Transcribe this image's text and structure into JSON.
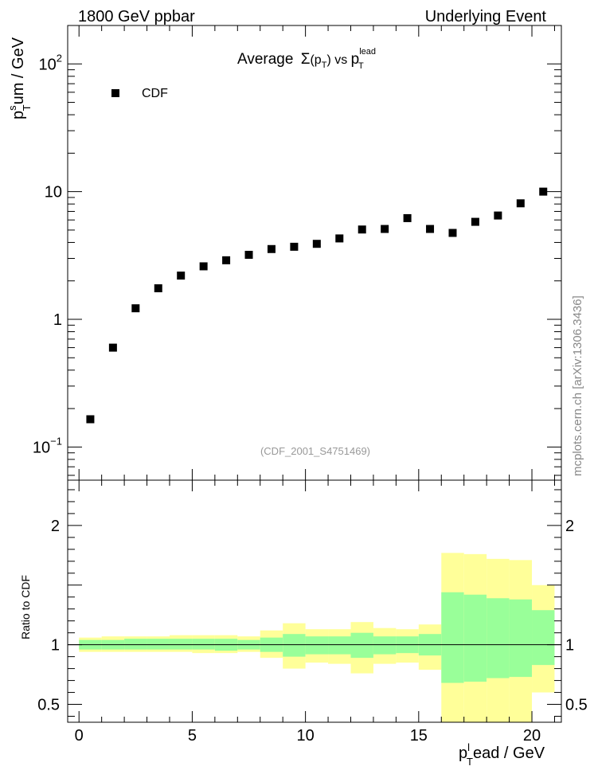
{
  "header": {
    "left": "1800 GeV ppbar",
    "right": "Underlying Event"
  },
  "plot_title": {
    "main": "Average",
    "sigma": "Σ",
    "paren_open": "(p",
    "paren_sub": "T",
    "paren_close": ")",
    "vs": " vs ",
    "p": "p",
    "p_sup": "lead",
    "p_sub": "T"
  },
  "side_label": "mcplots.cern.ch [arXiv:1306.3436]",
  "analysis_id": "(CDF_2001_S4751469)",
  "y_label_top": {
    "p": "p",
    "sup": "s",
    "sub": "T",
    "rest": "um / GeV"
  },
  "y_label_bottom": "Ratio to CDF",
  "x_label": {
    "p": "p",
    "sup": "l",
    "sub": "T",
    "rest": "ead / GeV"
  },
  "legend": {
    "entry": "CDF"
  },
  "colors": {
    "data_marker": "#000000",
    "band_outer": "#ffff99",
    "band_inner": "#99ff99",
    "analysis_id_text": "#999999",
    "side_label_text": "#888888"
  },
  "chart_data": [
    {
      "type": "scatter",
      "yscale": "log",
      "xlim": [
        -0.5,
        21.3
      ],
      "ylim": [
        0.055,
        200
      ],
      "series": [
        {
          "name": "CDF",
          "x": [
            0.5,
            1.5,
            2.5,
            3.5,
            4.5,
            5.5,
            6.5,
            7.5,
            8.5,
            9.5,
            10.5,
            11.5,
            12.5,
            13.5,
            14.5,
            15.5,
            16.5,
            17.5,
            18.5,
            19.5,
            20.5
          ],
          "y": [
            0.165,
            0.6,
            1.22,
            1.75,
            2.2,
            2.6,
            2.9,
            3.2,
            3.55,
            3.7,
            3.9,
            4.3,
            5.05,
            5.1,
            6.2,
            5.1,
            4.75,
            5.8,
            6.5,
            8.1,
            10.0
          ]
        }
      ],
      "y_ticks": [
        {
          "value": 0.1,
          "base": "10",
          "exp": "−1"
        },
        {
          "value": 1,
          "base": "1",
          "exp": ""
        },
        {
          "value": 10,
          "base": "10",
          "exp": ""
        },
        {
          "value": 100,
          "base": "10",
          "exp": "2"
        }
      ],
      "legend": "top-left",
      "grid": false
    },
    {
      "type": "area",
      "xlim": [
        -0.5,
        21.3
      ],
      "ylim": [
        0.35,
        2.38
      ],
      "reference_line": 1,
      "bins": [
        0,
        1,
        2,
        3,
        4,
        5,
        6,
        7,
        8,
        9,
        10,
        11,
        12,
        13,
        14,
        15,
        16,
        17,
        18,
        19,
        20,
        21
      ],
      "outer_band_low": [
        0.94,
        0.94,
        0.94,
        0.94,
        0.94,
        0.93,
        0.93,
        0.94,
        0.89,
        0.8,
        0.85,
        0.84,
        0.76,
        0.84,
        0.85,
        0.79,
        0.0,
        0.0,
        0.0,
        0.0,
        0.6
      ],
      "outer_band_high": [
        1.06,
        1.07,
        1.07,
        1.07,
        1.08,
        1.08,
        1.08,
        1.07,
        1.12,
        1.18,
        1.13,
        1.13,
        1.19,
        1.14,
        1.13,
        1.17,
        1.77,
        1.76,
        1.72,
        1.71,
        1.5
      ],
      "inner_band_low": [
        0.96,
        0.96,
        0.96,
        0.96,
        0.96,
        0.96,
        0.95,
        0.96,
        0.94,
        0.9,
        0.92,
        0.92,
        0.89,
        0.92,
        0.93,
        0.91,
        0.68,
        0.69,
        0.72,
        0.73,
        0.83
      ],
      "inner_band_high": [
        1.04,
        1.04,
        1.05,
        1.05,
        1.05,
        1.05,
        1.05,
        1.04,
        1.06,
        1.09,
        1.07,
        1.07,
        1.1,
        1.07,
        1.07,
        1.09,
        1.44,
        1.42,
        1.39,
        1.38,
        1.29
      ],
      "y_ticks": [
        0.5,
        1,
        2
      ],
      "x_ticks": [
        0,
        5,
        10,
        15,
        20
      ]
    }
  ]
}
